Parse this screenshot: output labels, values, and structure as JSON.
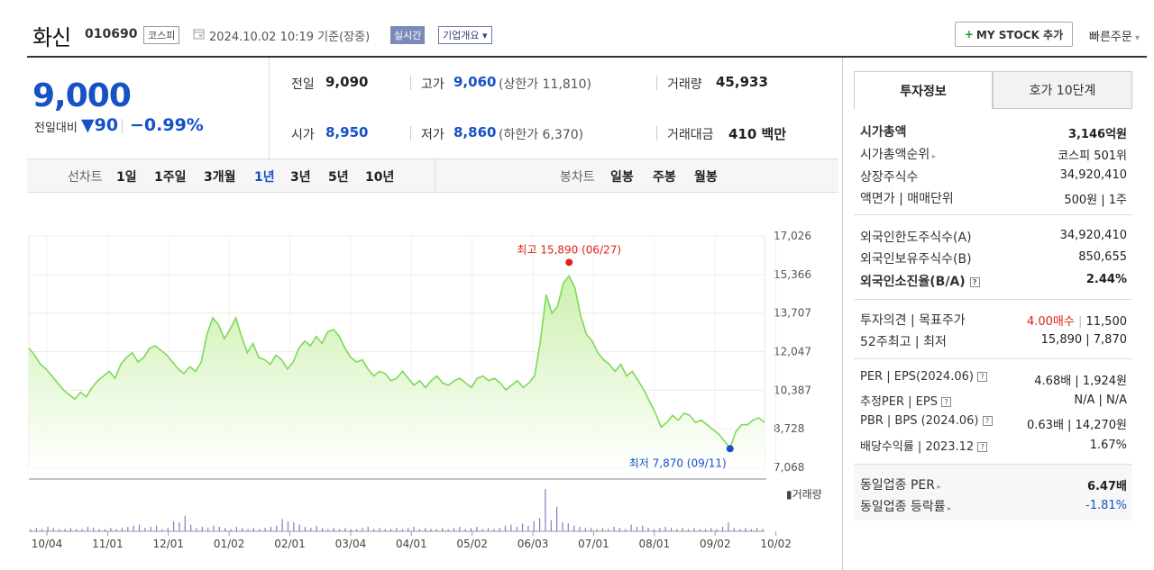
{
  "header": {
    "name": "화신",
    "code": "010690",
    "market": "코스피",
    "datetime": "2024.10.02 10:19 기준(장중)",
    "realtime": "실시간",
    "company_info": "기업개요 ▾",
    "mystock": "MY STOCK 추가",
    "mystock_plus": "+",
    "quick_order": "빠른주문"
  },
  "price": {
    "current": "9,000",
    "diff_label": "전일대비",
    "diff_value": "▼90",
    "diff_pct": "−0.99%"
  },
  "stats": {
    "prev_label": "전일",
    "prev": "9,090",
    "high_label": "고가",
    "high": "9,060",
    "upper_limit": "(상한가 11,810)",
    "volume_label": "거래량",
    "volume": "45,933",
    "open_label": "시가",
    "open": "8,950",
    "low_label": "저가",
    "low": "8,860",
    "lower_limit": "(하한가 6,370)",
    "amount_label": "거래대금",
    "amount": "410 백만"
  },
  "period": {
    "line_label": "선차트",
    "line_items": [
      "1일",
      "1주일",
      "3개월",
      "1년",
      "3년",
      "5년",
      "10년"
    ],
    "selected": "1년",
    "candle_label": "봉차트",
    "candle_items": [
      "일봉",
      "주봉",
      "월봉"
    ]
  },
  "tabs": {
    "invest": "투자정보",
    "hoga": "호가 10단계"
  },
  "info": {
    "cap_label": "시가총액",
    "cap": "3,146억원",
    "cap_rank_label": "시가총액순위",
    "cap_rank": "코스피 501위",
    "shares_label": "상장주식수",
    "shares": "34,920,410",
    "par_label": "액면가 | 매매단위",
    "par": "500원 | 1주",
    "foreign_limit_label": "외국인한도주식수(A)",
    "foreign_limit": "34,920,410",
    "foreign_hold_label": "외국인보유주식수(B)",
    "foreign_hold": "850,655",
    "foreign_ratio_label": "외국인소진율(B/A)",
    "foreign_ratio": "2.44%",
    "opinion_label": "투자의견 | 목표주가",
    "opinion": "4.00매수",
    "target": "11,500",
    "w52_label": "52주최고 | 최저",
    "w52": "15,890 | 7,870",
    "per_label": "PER | EPS(2024.06)",
    "per": "4.68배 | 1,924원",
    "eper_label": "추정PER | EPS",
    "eper": "N/A | N/A",
    "pbr_label": "PBR | BPS (2024.06)",
    "pbr": "0.63배 | 14,270원",
    "div_label": "배당수익률 | 2023.12",
    "div": "1.67%",
    "ind_per_label": "동일업종 PER",
    "ind_per": "6.47배",
    "ind_chg_label": "동일업종 등락률",
    "ind_chg": "-1.81%"
  },
  "colors": {
    "blue": "#1651c6",
    "red": "#e0201a",
    "line": "#7ed957",
    "fill": "#c9f0a8"
  },
  "chart_data": {
    "type": "area",
    "x_ticks": [
      "10/04",
      "11/01",
      "12/01",
      "01/02",
      "02/01",
      "03/04",
      "04/01",
      "05/02",
      "06/03",
      "07/01",
      "08/01",
      "09/02",
      "10/02"
    ],
    "y_ticks": [
      "17,026",
      "15,366",
      "13,707",
      "12,047",
      "10,387",
      "8,728",
      "7,068"
    ],
    "ylim": [
      7068,
      17026
    ],
    "max_label": "최고 15,890 (06/27)",
    "min_label": "최저 7,870 (09/11)",
    "volume_label": "▮거래량",
    "series": [
      {
        "values": [
          12200,
          11900,
          11500,
          11300,
          11000,
          10700,
          10400,
          10200,
          10000,
          10300,
          10100,
          10500,
          10800,
          11000,
          11200,
          10900,
          11500,
          11800,
          12000,
          11600,
          11800,
          12200,
          12300,
          12100,
          11900,
          11600,
          11300,
          11100,
          11400,
          11200,
          11600,
          12800,
          13500,
          13200,
          12600,
          13000,
          13500,
          12700,
          12000,
          12400,
          11800,
          11700,
          11500,
          11900,
          11700,
          11300,
          11600,
          12200,
          12500,
          12300,
          12700,
          12400,
          12900,
          13000,
          12700,
          12200,
          11800,
          11600,
          11700,
          11300,
          11000,
          11200,
          11100,
          10800,
          10900,
          11200,
          10900,
          10600,
          10800,
          10500,
          10800,
          11000,
          10700,
          10600,
          10800,
          10900,
          10700,
          10500,
          10900,
          11000,
          10800,
          10900,
          10700,
          10400,
          10600,
          10800,
          10500,
          10700,
          11000,
          12500,
          14500,
          13700,
          14000,
          15000,
          15300,
          14800,
          13600,
          12800,
          12500,
          12000,
          11700,
          11500,
          11200,
          11500,
          11000,
          11200,
          10800,
          10400,
          9900,
          9400,
          8800,
          9000,
          9300,
          9100,
          9400,
          9300,
          9000,
          9100,
          8900,
          8700,
          8500,
          8200,
          7900,
          8600,
          8900,
          8900,
          9100,
          9200,
          9000
        ]
      }
    ],
    "volume": [
      2,
      3,
      2,
      4,
      3,
      2,
      2,
      3,
      2,
      2,
      4,
      3,
      2,
      2,
      3,
      2,
      3,
      4,
      5,
      6,
      3,
      4,
      5,
      2,
      3,
      9,
      8,
      14,
      6,
      3,
      4,
      3,
      5,
      4,
      3,
      2,
      4,
      3,
      2,
      3,
      2,
      3,
      4,
      5,
      11,
      9,
      8,
      6,
      4,
      3,
      5,
      3,
      2,
      3,
      2,
      3,
      2,
      2,
      3,
      4,
      2,
      3,
      2,
      2,
      3,
      2,
      3,
      4,
      2,
      3,
      2,
      2,
      3,
      2,
      3,
      4,
      2,
      3,
      4,
      2,
      3,
      2,
      3,
      5,
      6,
      4,
      7,
      5,
      9,
      12,
      38,
      10,
      22,
      8,
      7,
      5,
      4,
      3,
      3,
      2,
      3,
      2,
      4,
      3,
      2,
      6,
      4,
      5,
      3,
      2,
      3,
      4,
      3,
      2,
      3,
      2,
      3,
      2,
      2,
      3,
      2,
      4,
      8,
      3,
      2,
      3,
      2,
      3,
      2
    ]
  }
}
